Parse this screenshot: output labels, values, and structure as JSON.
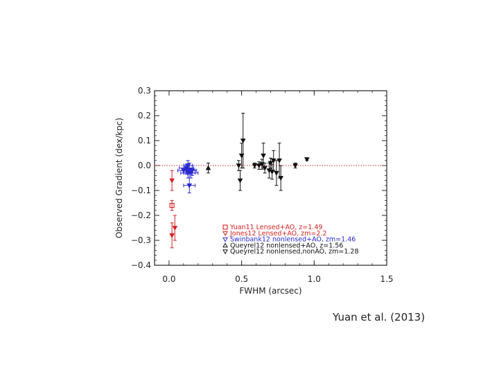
{
  "caption": "Yuan et al. (2013)",
  "chart_data": {
    "type": "scatter",
    "xlabel": "FWHM (arcsec)",
    "ylabel": "Observed Gradient (dex/kpc)",
    "xlim": [
      -0.1,
      1.5
    ],
    "ylim": [
      -0.4,
      0.3
    ],
    "xticks": [
      0.0,
      0.5,
      1.0,
      1.5
    ],
    "xtick_labels": [
      "0.0",
      "0.5",
      "1.0",
      "1.5"
    ],
    "yticks": [
      0.3,
      0.2,
      0.1,
      0.0,
      -0.1,
      -0.2,
      -0.3,
      -0.4
    ],
    "ytick_labels": [
      "0.3",
      "0.2",
      "0.1",
      "0.0",
      "−0.1",
      "−0.2",
      "−0.3",
      "−0.4"
    ],
    "reference_line": {
      "y": 0.0,
      "style": "dotted",
      "color": "#d62020"
    },
    "grid": false,
    "legend_position": "bottom-right",
    "series": [
      {
        "name": "Yuan11  Lensed+AO,  z=1.49",
        "color": "#d62020",
        "marker": "square",
        "points": [
          {
            "x": 0.02,
            "y": -0.16,
            "yerr": 0.02,
            "xerr": 0.0
          }
        ]
      },
      {
        "name": "Jones12  Lensed+AO,  zm=2.2",
        "color": "#d62020",
        "marker": "triangle-down",
        "points": [
          {
            "x": 0.02,
            "y": -0.06,
            "yerr": 0.04,
            "xerr": 0.0
          },
          {
            "x": 0.02,
            "y": -0.28,
            "yerr": 0.05,
            "xerr": 0.0
          },
          {
            "x": 0.04,
            "y": -0.25,
            "yerr": 0.05,
            "xerr": 0.0
          }
        ]
      },
      {
        "name": "Swinbank12  nonlensed+AO,  zm=1.46",
        "color": "#2a2ad0",
        "marker": "triangle-down",
        "points": [
          {
            "x": 0.1,
            "y": -0.02,
            "yerr": 0.01,
            "xerr": 0.04
          },
          {
            "x": 0.12,
            "y": -0.01,
            "yerr": 0.015,
            "xerr": 0.05
          },
          {
            "x": 0.13,
            "y": 0.0,
            "yerr": 0.02,
            "xerr": 0.03
          },
          {
            "x": 0.13,
            "y": -0.03,
            "yerr": 0.02,
            "xerr": 0.05
          },
          {
            "x": 0.14,
            "y": -0.02,
            "yerr": 0.03,
            "xerr": 0.04
          },
          {
            "x": 0.15,
            "y": -0.03,
            "yerr": 0.02,
            "xerr": 0.05
          },
          {
            "x": 0.14,
            "y": -0.08,
            "yerr": 0.03,
            "xerr": 0.04
          },
          {
            "x": 0.16,
            "y": -0.02,
            "yerr": 0.02,
            "xerr": 0.03
          },
          {
            "x": 0.12,
            "y": -0.015,
            "yerr": 0.02,
            "xerr": 0.03
          }
        ]
      },
      {
        "name": "Queyrel12  nonlensed+AO,  z=1.56",
        "color": "#111111",
        "marker": "triangle-up",
        "points": [
          {
            "x": 0.27,
            "y": -0.01,
            "yerr": 0.02,
            "xerr": 0.0
          }
        ]
      },
      {
        "name": "Queyrel12  nonlensed,nonAO,  zm=1.28",
        "color": "#111111",
        "marker": "triangle-down",
        "points": [
          {
            "x": 0.48,
            "y": 0.0,
            "yerr": 0.02
          },
          {
            "x": 0.49,
            "y": -0.06,
            "yerr": 0.04
          },
          {
            "x": 0.5,
            "y": 0.04,
            "yerr": 0.05
          },
          {
            "x": 0.51,
            "y": 0.1,
            "yerr": 0.11
          },
          {
            "x": 0.59,
            "y": 0.0,
            "yerr": 0.01
          },
          {
            "x": 0.62,
            "y": 0.0,
            "yerr": 0.015
          },
          {
            "x": 0.64,
            "y": 0.005,
            "yerr": 0.02
          },
          {
            "x": 0.65,
            "y": 0.04,
            "yerr": 0.05
          },
          {
            "x": 0.66,
            "y": -0.01,
            "yerr": 0.02
          },
          {
            "x": 0.69,
            "y": -0.02,
            "yerr": 0.03
          },
          {
            "x": 0.7,
            "y": 0.01,
            "yerr": 0.02
          },
          {
            "x": 0.71,
            "y": -0.025,
            "yerr": 0.03
          },
          {
            "x": 0.72,
            "y": 0.02,
            "yerr": 0.04
          },
          {
            "x": 0.74,
            "y": -0.03,
            "yerr": 0.05
          },
          {
            "x": 0.76,
            "y": 0.02,
            "yerr": 0.07
          },
          {
            "x": 0.77,
            "y": -0.05,
            "yerr": 0.05
          },
          {
            "x": 0.87,
            "y": 0.0,
            "yerr": 0.01
          },
          {
            "x": 0.95,
            "y": 0.025,
            "yerr": 0.005
          }
        ]
      }
    ]
  }
}
